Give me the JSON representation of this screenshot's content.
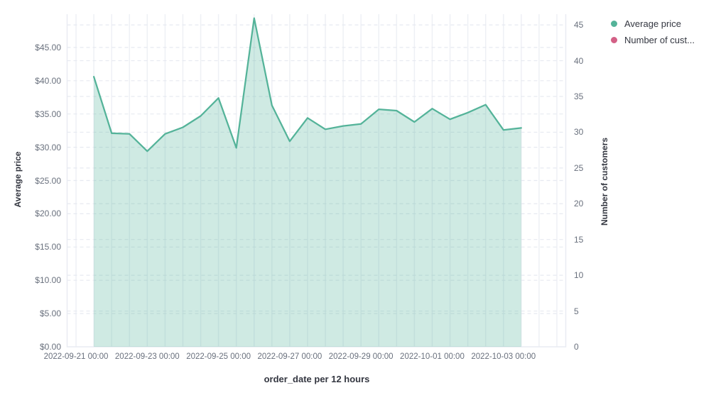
{
  "legend": {
    "position": "top-right",
    "items": [
      {
        "label": "Average price",
        "color": "#54b399"
      },
      {
        "label": "Number of cust...",
        "color": "#d36086"
      }
    ]
  },
  "axes": {
    "left": {
      "title": "Average price",
      "tick_labels": [
        "$0.00",
        "$5.00",
        "$10.00",
        "$15.00",
        "$20.00",
        "$25.00",
        "$30.00",
        "$35.00",
        "$40.00",
        "$45.00"
      ],
      "tick_values": [
        0,
        5,
        10,
        15,
        20,
        25,
        30,
        35,
        40,
        45
      ]
    },
    "right": {
      "title": "Number of customers",
      "tick_labels": [
        "0",
        "5",
        "10",
        "15",
        "20",
        "25",
        "30",
        "35",
        "40",
        "45"
      ],
      "tick_values": [
        0,
        5,
        10,
        15,
        20,
        25,
        30,
        35,
        40,
        45
      ]
    },
    "x": {
      "title": "order_date per 12 hours",
      "tick_labels": [
        "2022-09-21 00:00",
        "2022-09-23 00:00",
        "2022-09-25 00:00",
        "2022-09-27 00:00",
        "2022-09-29 00:00",
        "2022-10-01 00:00",
        "2022-10-03 00:00"
      ],
      "tick_band_indices": [
        0,
        4,
        8,
        12,
        16,
        20,
        24
      ]
    }
  },
  "chart_data": {
    "type": "area",
    "title": "",
    "xlabel": "order_date per 12 hours",
    "ylabel_left": "Average price",
    "ylabel_right": "Number of customers",
    "interval": "12 hours",
    "grid": true,
    "legend_position": "right",
    "ylim_left": [
      0,
      50
    ],
    "ylim_right": [
      0,
      46.5
    ],
    "x": [
      "2022-09-21 12:00",
      "2022-09-22 00:00",
      "2022-09-22 12:00",
      "2022-09-23 00:00",
      "2022-09-23 12:00",
      "2022-09-24 00:00",
      "2022-09-24 12:00",
      "2022-09-25 00:00",
      "2022-09-25 12:00",
      "2022-09-26 00:00",
      "2022-09-26 12:00",
      "2022-09-27 00:00",
      "2022-09-27 12:00",
      "2022-09-28 00:00",
      "2022-09-28 12:00",
      "2022-09-29 00:00",
      "2022-09-29 12:00",
      "2022-09-30 00:00",
      "2022-09-30 12:00",
      "2022-10-01 00:00",
      "2022-10-01 12:00",
      "2022-10-02 00:00",
      "2022-10-02 12:00",
      "2022-10-03 00:00",
      "2022-10-03 12:00"
    ],
    "series": [
      {
        "name": "Average price",
        "axis": "left",
        "color": "#54b399",
        "fill_opacity": 0.28,
        "values": [
          40.6,
          32.1,
          32.0,
          29.4,
          32.0,
          33.0,
          34.7,
          37.4,
          29.9,
          49.4,
          36.3,
          30.9,
          34.4,
          32.7,
          33.2,
          33.5,
          35.7,
          35.5,
          33.8,
          35.8,
          34.2,
          35.2,
          36.4,
          32.6,
          32.9
        ]
      }
    ]
  },
  "colors": {
    "grid_vertical": "#eef0f5",
    "grid_horizontal_dashed": "#e6e9f0",
    "plot_border": "#e9ebf2",
    "tick_text": "#69707d",
    "title_text": "#343741"
  }
}
